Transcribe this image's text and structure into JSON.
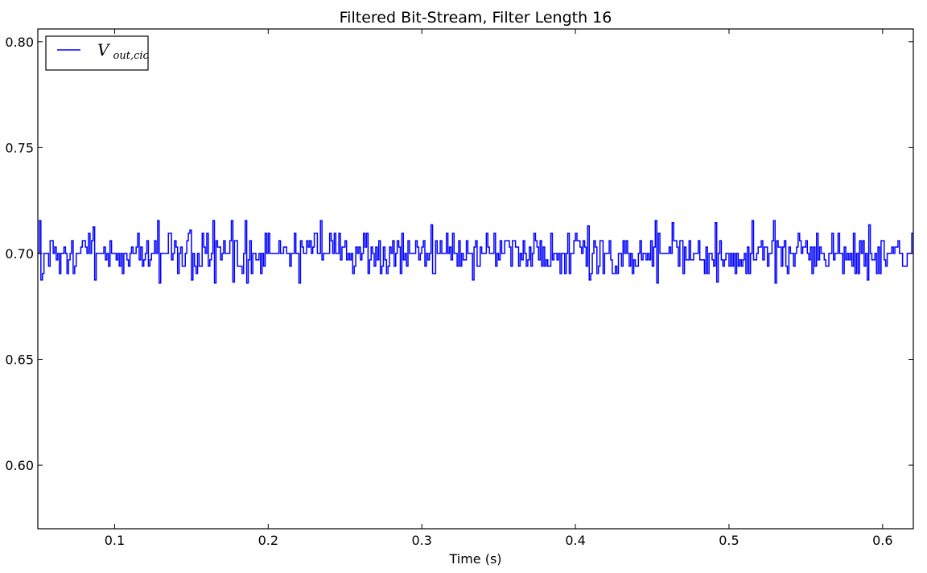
{
  "chart_data": {
    "type": "line",
    "title": "Filtered Bit-Stream, Filter Length 16",
    "xlabel": "Time (s)",
    "ylabel": "",
    "xlim": [
      0.05,
      0.62
    ],
    "ylim": [
      0.57,
      0.806
    ],
    "x_ticks": [
      0.1,
      0.2,
      0.3,
      0.4,
      0.5,
      0.6
    ],
    "x_tick_labels": [
      "0.1",
      "0.2",
      "0.3",
      "0.4",
      "0.5",
      "0.6"
    ],
    "y_ticks": [
      0.6,
      0.65,
      0.7,
      0.75,
      0.8
    ],
    "y_tick_labels": [
      "0.60",
      "0.65",
      "0.70",
      "0.75",
      "0.80"
    ],
    "grid": false,
    "legend_position": "top-left",
    "series": [
      {
        "name": "V_out,cic",
        "legend_main": "V",
        "legend_sub": "out,cic",
        "color": "#0000ff",
        "baseline": 0.7,
        "sample_step": 0.001,
        "levels": [
          0.6875,
          0.6905,
          0.694,
          0.697,
          0.7,
          0.703,
          0.706,
          0.7095,
          0.7125
        ],
        "extreme_peaks": [
          {
            "x": 0.051,
            "y": 0.7155
          },
          {
            "x": 0.086,
            "y": 0.7125
          },
          {
            "x": 0.128,
            "y": 0.7155
          },
          {
            "x": 0.149,
            "y": 0.711
          },
          {
            "x": 0.164,
            "y": 0.7155
          },
          {
            "x": 0.176,
            "y": 0.7155
          },
          {
            "x": 0.185,
            "y": 0.7155
          },
          {
            "x": 0.234,
            "y": 0.7155
          },
          {
            "x": 0.306,
            "y": 0.7135
          },
          {
            "x": 0.408,
            "y": 0.713
          },
          {
            "x": 0.452,
            "y": 0.7155
          },
          {
            "x": 0.463,
            "y": 0.7145
          },
          {
            "x": 0.491,
            "y": 0.7145
          },
          {
            "x": 0.515,
            "y": 0.7155
          },
          {
            "x": 0.529,
            "y": 0.7155
          },
          {
            "x": 0.591,
            "y": 0.7135
          }
        ],
        "extreme_troughs": [
          {
            "x": 0.051,
            "y": 0.6875
          },
          {
            "x": 0.087,
            "y": 0.6875
          },
          {
            "x": 0.128,
            "y": 0.686
          },
          {
            "x": 0.149,
            "y": 0.6875
          },
          {
            "x": 0.165,
            "y": 0.686
          },
          {
            "x": 0.176,
            "y": 0.6865
          },
          {
            "x": 0.186,
            "y": 0.686
          },
          {
            "x": 0.22,
            "y": 0.686
          },
          {
            "x": 0.306,
            "y": 0.6905
          },
          {
            "x": 0.333,
            "y": 0.6875
          },
          {
            "x": 0.408,
            "y": 0.6875
          },
          {
            "x": 0.453,
            "y": 0.686
          },
          {
            "x": 0.491,
            "y": 0.6865
          },
          {
            "x": 0.529,
            "y": 0.686
          },
          {
            "x": 0.59,
            "y": 0.6875
          }
        ]
      }
    ]
  }
}
